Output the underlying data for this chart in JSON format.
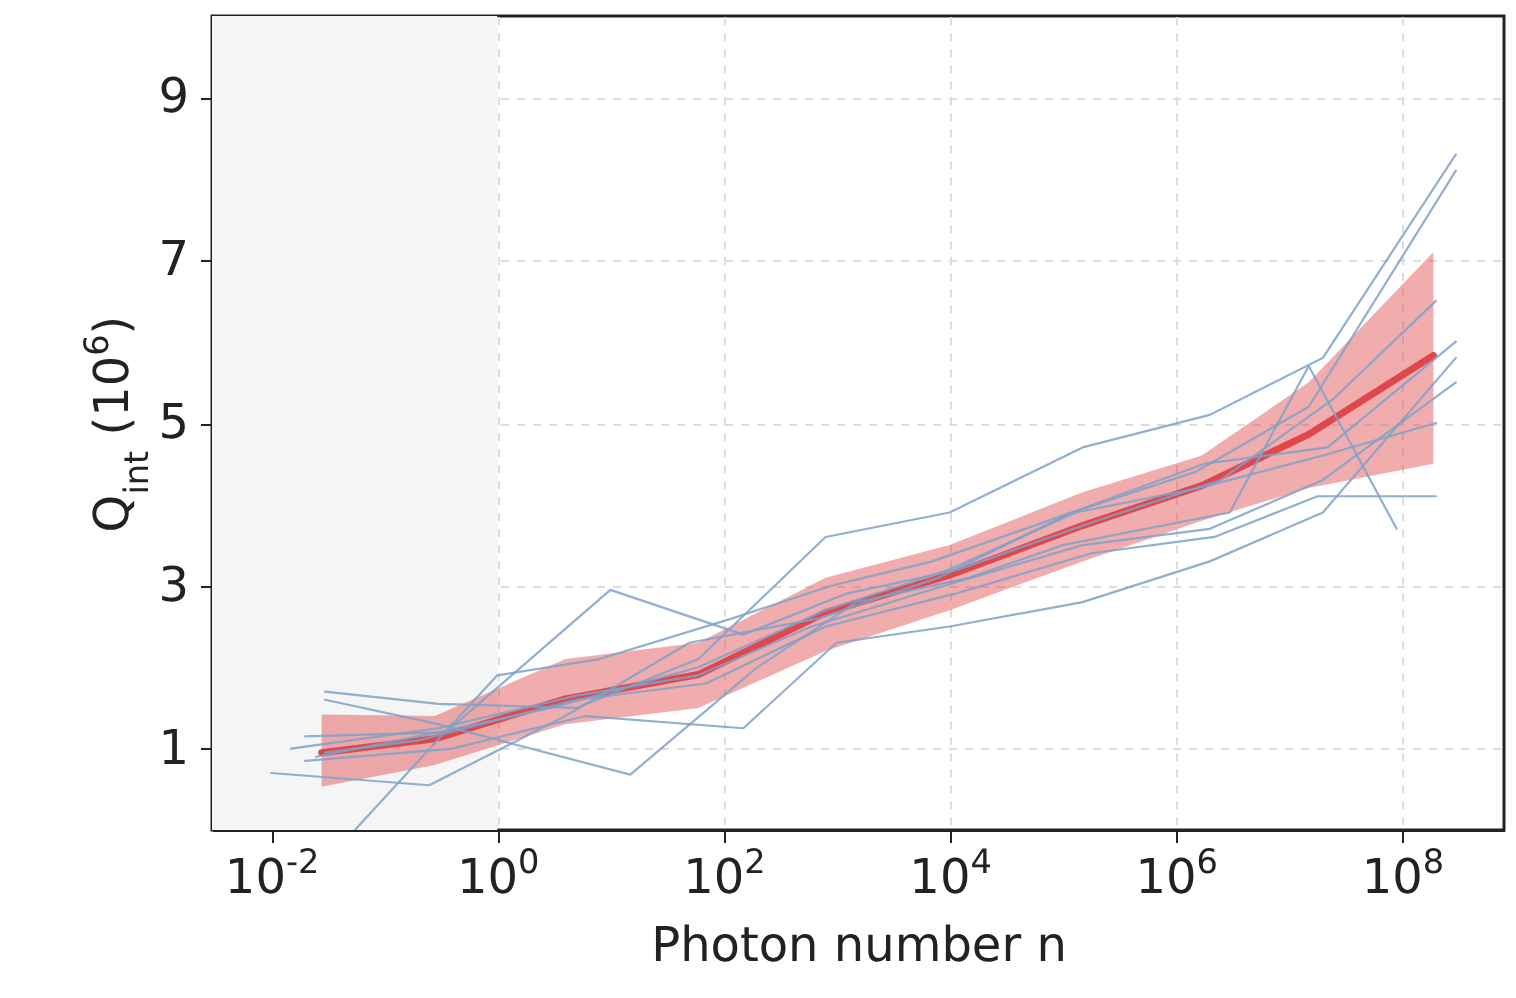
{
  "chart_data": {
    "type": "line",
    "xlabel": "Photon number n",
    "ylabel": "Q$_{int}$ (10$^{6}$)",
    "log": "x",
    "grid": true,
    "line_style": "solid",
    "marker": "none",
    "xlim": [
      0.003,
      800000000
    ],
    "xticks": [
      {
        "value": 0.01,
        "label": "10$^{-2}$"
      },
      {
        "value": 1,
        "label": "10$^{0}$"
      },
      {
        "value": 100,
        "label": "10$^{2}$"
      },
      {
        "value": 10000,
        "label": "10$^{4}$"
      },
      {
        "value": 1000000,
        "label": "10$^{6}$"
      },
      {
        "value": 100000000,
        "label": "10$^{8}$"
      }
    ],
    "ylim": [
      0,
      10
    ],
    "yticks": [
      1,
      3,
      5,
      7,
      9
    ],
    "bands": [
      {
        "axis": "x",
        "from": 0.003,
        "to": 1,
        "color": "#f5f5f5"
      }
    ],
    "series": [
      {
        "color": "#e0474c",
        "x": [
          0.028,
          0.28,
          4,
          60,
          800,
          10000,
          150000,
          1700000,
          15000000,
          190000000
        ],
        "values": [
          0.95,
          1.12,
          1.61,
          1.91,
          2.67,
          3.13,
          3.74,
          4.23,
          4.86,
          5.83
        ],
        "lower": [
          0.53,
          0.8,
          1.3,
          1.5,
          2.2,
          2.7,
          3.3,
          3.8,
          4.2,
          4.5
        ],
        "upper": [
          1.42,
          1.4,
          2.1,
          2.3,
          3.1,
          3.5,
          4.15,
          4.6,
          5.5,
          7.1
        ]
      },
      {
        "color": "#7ea1c8",
        "x": [
          0.03,
          0.3,
          5,
          60,
          800,
          10000,
          150000,
          2000000,
          20000000,
          300000000
        ],
        "values": [
          1.7,
          1.55,
          1.5,
          2.1,
          3.6,
          3.9,
          4.7,
          5.1,
          5.8,
          8.3
        ]
      },
      {
        "color": "#7ea1c8",
        "x": [
          0.01,
          0.25,
          4,
          50,
          700,
          8000,
          120000,
          1500000,
          15000000,
          300000000
        ],
        "values": [
          0.7,
          0.55,
          1.4,
          2.3,
          2.6,
          3.1,
          3.9,
          4.4,
          5.2,
          8.1
        ]
      },
      {
        "color": "#7ea1c8",
        "x": [
          0.02,
          0.35,
          10,
          150,
          1200,
          12000,
          200000,
          2500000,
          25000000,
          200000000
        ],
        "values": [
          1.15,
          1.2,
          2.95,
          2.4,
          2.9,
          3.2,
          3.8,
          4.3,
          5.3,
          6.5
        ]
      },
      {
        "color": "#7ea1c8",
        "x": [
          0.03,
          0.3,
          15,
          200,
          1500,
          15000,
          100000,
          3000000,
          15000000,
          90000000
        ],
        "values": [
          1.6,
          1.3,
          0.68,
          2.0,
          2.8,
          3.1,
          3.5,
          3.9,
          5.7,
          3.7
        ]
      },
      {
        "color": "#7ea1c8",
        "x": [
          0.055,
          1,
          8,
          120,
          900,
          7000,
          120000,
          1800000,
          22000000,
          300000000
        ],
        "values": [
          0,
          1.9,
          2.1,
          2.6,
          3.0,
          3.3,
          3.9,
          4.5,
          4.7,
          6.0
        ]
      },
      {
        "color": "#7ea1c8",
        "x": [
          0.02,
          0.4,
          6,
          150,
          1000,
          10000,
          150000,
          2000000,
          20000000,
          300000000
        ],
        "values": [
          0.85,
          1.0,
          1.4,
          1.25,
          2.3,
          2.5,
          2.8,
          3.3,
          3.9,
          5.8
        ]
      },
      {
        "color": "#7ea1c8",
        "x": [
          0.015,
          0.3,
          5,
          60,
          600,
          9000,
          150000,
          2000000,
          20000000,
          300000000
        ],
        "values": [
          1.0,
          1.25,
          1.65,
          1.9,
          2.5,
          3.0,
          3.5,
          3.7,
          4.3,
          5.5
        ]
      },
      {
        "color": "#7ea1c8",
        "x": [
          0.03,
          0.2,
          5,
          70,
          800,
          11000,
          180000,
          2200000,
          18000000,
          200000000
        ],
        "values": [
          0.95,
          1.1,
          1.6,
          1.8,
          2.5,
          2.9,
          3.4,
          3.6,
          4.1,
          4.1
        ]
      },
      {
        "color": "#7ea1c8",
        "x": [
          0.025,
          0.3,
          3,
          60,
          800,
          10000,
          130000,
          1600000,
          20000000,
          200000000
        ],
        "values": [
          0.9,
          1.2,
          1.5,
          2.0,
          2.7,
          3.2,
          3.9,
          4.2,
          4.6,
          5.0
        ]
      }
    ]
  }
}
